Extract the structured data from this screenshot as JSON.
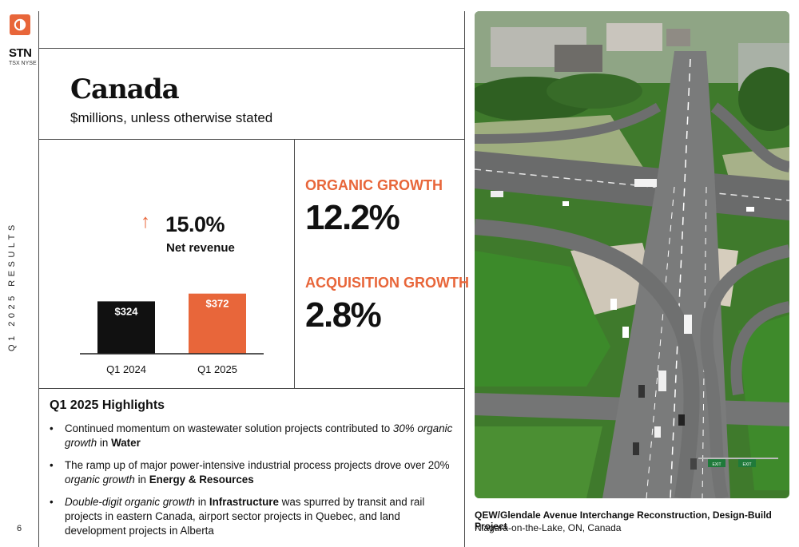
{
  "brand": {
    "ticker": "STN",
    "exchange": "TSX NYSE",
    "logo_color": "#e8663a"
  },
  "sidebar": {
    "vertical_label": "Q1 2025 RESULTS",
    "page_number": "6"
  },
  "header": {
    "title": "Canada",
    "subtitle": "$millions, unless otherwise stated"
  },
  "net_revenue": {
    "arrow": "↑",
    "change": "15.0%",
    "label": "Net revenue"
  },
  "chart_data": {
    "type": "bar",
    "categories": [
      "Q1 2024",
      "Q1 2025"
    ],
    "values": [
      324,
      372
    ],
    "data_labels": [
      "$324",
      "$372"
    ],
    "colors": [
      "#111111",
      "#e8663a"
    ],
    "ylim": [
      0,
      400
    ],
    "grid": false,
    "title": "",
    "xlabel": "",
    "ylabel": ""
  },
  "growth": {
    "organic_label": "ORGANIC GROWTH",
    "organic_value": "12.2%",
    "acquisition_label": "ACQUISITION GROWTH",
    "acquisition_value": "2.8%",
    "accent_color": "#e8663a"
  },
  "highlights": {
    "title": "Q1 2025 Highlights",
    "items": [
      [
        {
          "t": "Continued momentum on wastewater solution projects contributed to ",
          "s": ""
        },
        {
          "t": "30% organic growth",
          "s": "i"
        },
        {
          "t": " in ",
          "s": ""
        },
        {
          "t": "Water",
          "s": "b"
        }
      ],
      [
        {
          "t": "The ramp up of major power-intensive industrial process projects drove over 20% ",
          "s": ""
        },
        {
          "t": "organic growth",
          "s": "i"
        },
        {
          "t": " in ",
          "s": ""
        },
        {
          "t": "Energy & Resources",
          "s": "b"
        }
      ],
      [
        {
          "t": "Double-digit organic growth",
          "s": "i"
        },
        {
          "t": " in ",
          "s": ""
        },
        {
          "t": "Infrastructure",
          "s": "b"
        },
        {
          "t": " was spurred by transit and rail projects in eastern Canada, airport sector projects in Quebec, and land development projects in Alberta",
          "s": ""
        }
      ]
    ]
  },
  "photo": {
    "caption_title": "QEW/Glendale Avenue Interchange Reconstruction, Design-Build Project",
    "caption_location": "Niagara-on-the-Lake, ON, Canada",
    "sign_left": "EXIT",
    "sign_right": "EXIT"
  }
}
